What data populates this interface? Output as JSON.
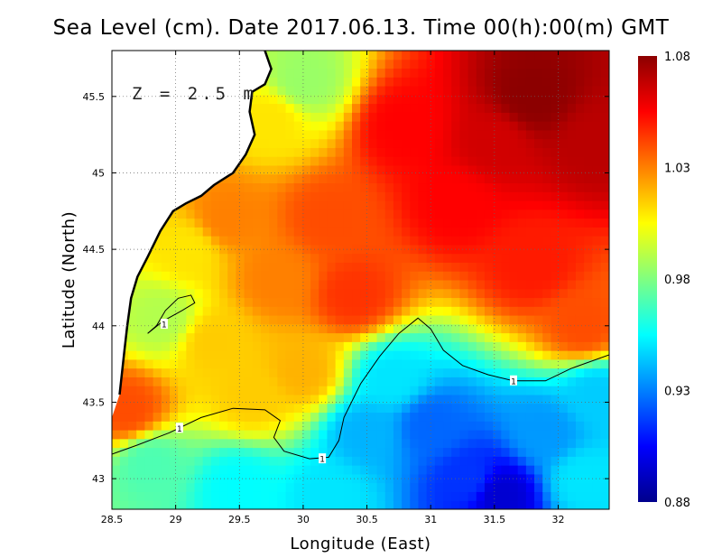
{
  "chart_data": {
    "type": "heatmap",
    "title": "Sea Level (cm). Date 2017.06.13. Time 00(h):00(m) GMT",
    "xlabel": "Longitude (East)",
    "ylabel": "Latitude (North)",
    "annotation": "Z = 2.5 m",
    "xlim": [
      28.5,
      32.4
    ],
    "ylim": [
      42.8,
      45.8
    ],
    "x_ticks": [
      {
        "value": 28.5,
        "label": "28.5"
      },
      {
        "value": 29,
        "label": "29"
      },
      {
        "value": 29.5,
        "label": "29.5"
      },
      {
        "value": 30,
        "label": "30"
      },
      {
        "value": 30.5,
        "label": "30.5"
      },
      {
        "value": 31,
        "label": "31"
      },
      {
        "value": 31.5,
        "label": "31.5"
      },
      {
        "value": 32,
        "label": "32"
      }
    ],
    "y_ticks": [
      {
        "value": 43,
        "label": "43"
      },
      {
        "value": 43.5,
        "label": "43.5"
      },
      {
        "value": 44,
        "label": "44"
      },
      {
        "value": 44.5,
        "label": "44.5"
      },
      {
        "value": 45,
        "label": "45"
      },
      {
        "value": 45.5,
        "label": "45.5"
      }
    ],
    "colorbar": {
      "range": [
        0.88,
        1.08
      ],
      "ticks": [
        {
          "value": 1.08,
          "label": "1.08"
        },
        {
          "value": 1.03,
          "label": "1.03"
        },
        {
          "value": 0.98,
          "label": "0.98"
        },
        {
          "value": 0.93,
          "label": "0.93"
        },
        {
          "value": 0.88,
          "label": "0.88"
        }
      ],
      "colors": [
        "#00008c",
        "#0000ff",
        "#0080ff",
        "#00ffff",
        "#80ff80",
        "#ffff00",
        "#ff8000",
        "#ff0000",
        "#8c0000"
      ]
    },
    "grid": true,
    "contour_label": "1",
    "contour_1": [
      [
        28.5,
        43.16
      ],
      [
        28.7,
        43.22
      ],
      [
        28.95,
        43.3
      ],
      [
        29.2,
        43.4
      ],
      [
        29.45,
        43.46
      ],
      [
        29.7,
        43.45
      ],
      [
        29.82,
        43.38
      ],
      [
        29.77,
        43.27
      ],
      [
        29.85,
        43.18
      ],
      [
        30.05,
        43.13
      ],
      [
        30.2,
        43.14
      ],
      [
        30.28,
        43.25
      ],
      [
        30.32,
        43.4
      ],
      [
        30.45,
        43.62
      ],
      [
        30.6,
        43.8
      ],
      [
        30.75,
        43.95
      ],
      [
        30.9,
        44.05
      ],
      [
        31.0,
        43.98
      ],
      [
        31.1,
        43.84
      ],
      [
        31.25,
        43.74
      ],
      [
        31.45,
        43.68
      ],
      [
        31.65,
        43.64
      ],
      [
        31.9,
        43.64
      ],
      [
        32.1,
        43.72
      ],
      [
        32.4,
        43.81
      ]
    ],
    "contour_1_inner": [
      [
        28.78,
        43.95
      ],
      [
        28.9,
        44.03
      ],
      [
        29.05,
        44.1
      ],
      [
        29.15,
        44.15
      ],
      [
        29.12,
        44.2
      ],
      [
        29.02,
        44.18
      ],
      [
        28.92,
        44.1
      ],
      [
        28.85,
        44.0
      ],
      [
        28.78,
        43.95
      ]
    ],
    "contour_label_points": [
      [
        28.91,
        44.01
      ],
      [
        29.03,
        43.33
      ],
      [
        30.15,
        43.13
      ],
      [
        31.65,
        43.64
      ]
    ],
    "land_points": [
      [
        28.5,
        45.8
      ],
      [
        29.7,
        45.8
      ],
      [
        29.75,
        45.68
      ],
      [
        29.7,
        45.58
      ],
      [
        29.6,
        45.53
      ],
      [
        29.58,
        45.4
      ],
      [
        29.62,
        45.25
      ],
      [
        29.55,
        45.12
      ],
      [
        29.45,
        45.0
      ],
      [
        29.3,
        44.92
      ],
      [
        29.2,
        44.85
      ],
      [
        29.08,
        44.8
      ],
      [
        28.98,
        44.75
      ],
      [
        28.88,
        44.62
      ],
      [
        28.78,
        44.45
      ],
      [
        28.7,
        44.32
      ],
      [
        28.65,
        44.18
      ],
      [
        28.62,
        44.0
      ],
      [
        28.6,
        43.85
      ],
      [
        28.58,
        43.7
      ],
      [
        28.56,
        43.55
      ],
      [
        28.5,
        43.4
      ]
    ],
    "value_regions": [
      {
        "lon": 31.8,
        "lat": 45.5,
        "value": 1.08
      },
      {
        "lon": 31.5,
        "lat": 45.2,
        "value": 1.065
      },
      {
        "lon": 30.8,
        "lat": 45.3,
        "value": 1.055
      },
      {
        "lon": 31.2,
        "lat": 44.8,
        "value": 1.055
      },
      {
        "lon": 32.3,
        "lat": 45.2,
        "value": 1.07
      },
      {
        "lon": 31.8,
        "lat": 44.4,
        "value": 1.05
      },
      {
        "lon": 32.2,
        "lat": 44.0,
        "value": 1.04
      },
      {
        "lon": 30.2,
        "lat": 44.7,
        "value": 1.04
      },
      {
        "lon": 30.4,
        "lat": 44.2,
        "value": 1.045
      },
      {
        "lon": 29.8,
        "lat": 44.3,
        "value": 1.03
      },
      {
        "lon": 29.4,
        "lat": 44.7,
        "value": 1.03
      },
      {
        "lon": 30.0,
        "lat": 45.6,
        "value": 0.985
      },
      {
        "lon": 29.75,
        "lat": 45.35,
        "value": 1.01
      },
      {
        "lon": 29.1,
        "lat": 44.5,
        "value": 1.01
      },
      {
        "lon": 29.3,
        "lat": 43.9,
        "value": 1.015
      },
      {
        "lon": 28.9,
        "lat": 44.05,
        "value": 0.99
      },
      {
        "lon": 28.62,
        "lat": 43.45,
        "value": 1.04
      },
      {
        "lon": 29.6,
        "lat": 43.55,
        "value": 1.015
      },
      {
        "lon": 30.0,
        "lat": 43.7,
        "value": 1.02
      },
      {
        "lon": 28.8,
        "lat": 43.1,
        "value": 0.97
      },
      {
        "lon": 29.5,
        "lat": 42.95,
        "value": 0.955
      },
      {
        "lon": 30.2,
        "lat": 42.9,
        "value": 0.95
      },
      {
        "lon": 30.5,
        "lat": 43.3,
        "value": 0.94
      },
      {
        "lon": 30.7,
        "lat": 43.65,
        "value": 0.95
      },
      {
        "lon": 31.0,
        "lat": 43.35,
        "value": 0.925
      },
      {
        "lon": 31.3,
        "lat": 43.0,
        "value": 0.915
      },
      {
        "lon": 31.55,
        "lat": 42.9,
        "value": 0.895
      },
      {
        "lon": 31.9,
        "lat": 43.3,
        "value": 0.935
      },
      {
        "lon": 32.3,
        "lat": 43.55,
        "value": 0.945
      },
      {
        "lon": 32.2,
        "lat": 43.0,
        "value": 0.95
      }
    ]
  }
}
